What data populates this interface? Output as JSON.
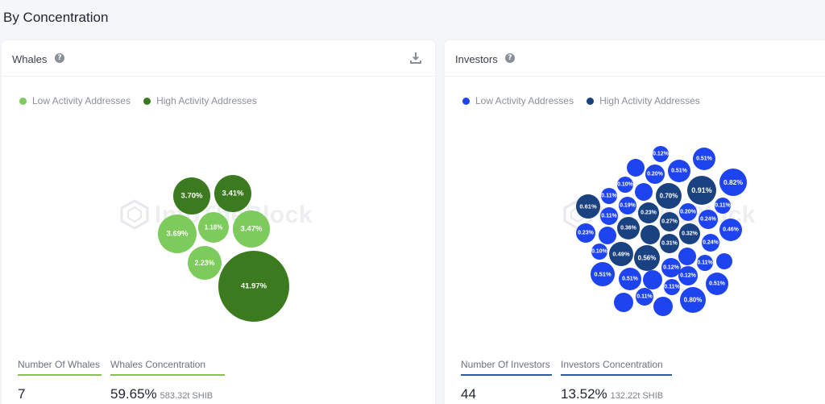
{
  "section_title": "By Concentration",
  "watermark": "IntoTheBlock",
  "whales": {
    "title": "Whales",
    "help_icon": "help-circle-icon",
    "download_icon": "download-icon",
    "legend": [
      {
        "label": "Low Activity Addresses",
        "color": "#7ccb5c"
      },
      {
        "label": "High Activity Addresses",
        "color": "#3c7a1f"
      }
    ],
    "bubbles": [
      {
        "label": "3.70%",
        "value": 3.7,
        "activity": "high"
      },
      {
        "label": "3.41%",
        "value": 3.41,
        "activity": "high"
      },
      {
        "label": "3.69%",
        "value": 3.69,
        "activity": "low"
      },
      {
        "label": "1.18%",
        "value": 1.18,
        "activity": "low"
      },
      {
        "label": "3.47%",
        "value": 3.47,
        "activity": "low"
      },
      {
        "label": "2.23%",
        "value": 2.23,
        "activity": "low"
      },
      {
        "label": "41.97%",
        "value": 41.97,
        "activity": "high"
      }
    ],
    "stats": [
      {
        "label": "Number Of Whales",
        "value": "7",
        "sub": ""
      },
      {
        "label": "Whales Concentration",
        "value": "59.65%",
        "sub": "583.32t SHIB"
      }
    ]
  },
  "investors": {
    "title": "Investors",
    "help_icon": "help-circle-icon",
    "legend": [
      {
        "label": "Low Activity Addresses",
        "color": "#1e44f0"
      },
      {
        "label": "High Activity Addresses",
        "color": "#1a4180"
      }
    ],
    "bubbles": [
      {
        "label": "0.12%",
        "activity": "low"
      },
      {
        "label": "0.51%",
        "activity": "low"
      },
      {
        "label": "",
        "activity": "low"
      },
      {
        "label": "0.20%",
        "activity": "low"
      },
      {
        "label": "0.51%",
        "activity": "low"
      },
      {
        "label": "0.82%",
        "activity": "low"
      },
      {
        "label": "0.10%",
        "activity": "low"
      },
      {
        "label": "0.70%",
        "activity": "high"
      },
      {
        "label": "0.91%",
        "activity": "high"
      },
      {
        "label": "0.11%",
        "activity": "low"
      },
      {
        "label": "",
        "activity": "low"
      },
      {
        "label": "0.61%",
        "activity": "high"
      },
      {
        "label": "0.19%",
        "activity": "low"
      },
      {
        "label": "0.23%",
        "activity": "high"
      },
      {
        "label": "0.20%",
        "activity": "low"
      },
      {
        "label": "0.11%",
        "activity": "low"
      },
      {
        "label": "0.11%",
        "activity": "low"
      },
      {
        "label": "0.27%",
        "activity": "high"
      },
      {
        "label": "0.24%",
        "activity": "low"
      },
      {
        "label": "0.46%",
        "activity": "low"
      },
      {
        "label": "0.36%",
        "activity": "high"
      },
      {
        "label": "0.32%",
        "activity": "high"
      },
      {
        "label": "0.23%",
        "activity": "low"
      },
      {
        "label": "",
        "activity": "low"
      },
      {
        "label": "",
        "activity": "high"
      },
      {
        "label": "0.31%",
        "activity": "high"
      },
      {
        "label": "0.24%",
        "activity": "low"
      },
      {
        "label": "0.10%",
        "activity": "low"
      },
      {
        "label": "0.49%",
        "activity": "high"
      },
      {
        "label": "0.56%",
        "activity": "high"
      },
      {
        "label": "",
        "activity": "low"
      },
      {
        "label": "0.11%",
        "activity": "low"
      },
      {
        "label": "",
        "activity": "low"
      },
      {
        "label": "0.51%",
        "activity": "low"
      },
      {
        "label": "0.51%",
        "activity": "low"
      },
      {
        "label": "0.12%",
        "activity": "low"
      },
      {
        "label": "",
        "activity": "low"
      },
      {
        "label": "0.12%",
        "activity": "low"
      },
      {
        "label": "0.51%",
        "activity": "low"
      },
      {
        "label": "0.11%",
        "activity": "low"
      },
      {
        "label": "0.11%",
        "activity": "low"
      },
      {
        "label": "0.80%",
        "activity": "low"
      },
      {
        "label": "",
        "activity": "low"
      },
      {
        "label": "",
        "activity": "low"
      }
    ],
    "stats": [
      {
        "label": "Number Of Investors",
        "value": "44",
        "sub": ""
      },
      {
        "label": "Investors Concentration",
        "value": "13.52%",
        "sub": "132.22t SHIB"
      }
    ]
  }
}
